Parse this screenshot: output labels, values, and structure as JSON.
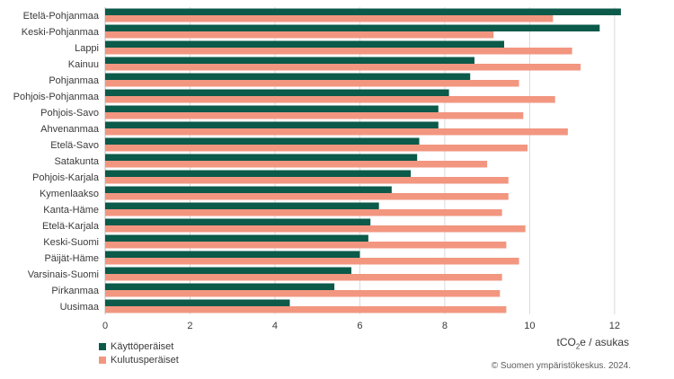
{
  "chart_data": {
    "type": "bar",
    "orientation": "horizontal",
    "categories": [
      "Etelä-Pohjanmaa",
      "Keski-Pohjanmaa",
      "Lappi",
      "Kainuu",
      "Pohjanmaa",
      "Pohjois-Pohjanmaa",
      "Pohjois-Savo",
      "Ahvenanmaa",
      "Etelä-Savo",
      "Satakunta",
      "Pohjois-Karjala",
      "Kymenlaakso",
      "Kanta-Häme",
      "Etelä-Karjala",
      "Keski-Suomi",
      "Päijät-Häme",
      "Varsinais-Suomi",
      "Pirkanmaa",
      "Uusimaa"
    ],
    "series": [
      {
        "name": "Käyttöperäiset",
        "color": "#0b5a4a",
        "values": [
          12.15,
          11.65,
          9.4,
          8.7,
          8.6,
          8.1,
          7.85,
          7.85,
          7.4,
          7.35,
          7.2,
          6.75,
          6.45,
          6.25,
          6.2,
          6.0,
          5.8,
          5.4,
          4.35
        ]
      },
      {
        "name": "Kulutusperäiset",
        "color": "#f29680",
        "values": [
          10.55,
          9.15,
          11.0,
          11.2,
          9.75,
          10.6,
          9.85,
          10.9,
          9.95,
          9.0,
          9.5,
          9.5,
          9.35,
          9.9,
          9.45,
          9.75,
          9.35,
          9.3,
          9.45
        ]
      }
    ],
    "xlim": [
      0,
      12.3
    ],
    "xticks": [
      0,
      2,
      4,
      6,
      8,
      10,
      12
    ],
    "xlabel_main": "tCO",
    "xlabel_sub": "2",
    "xlabel_rest": "e / asukas",
    "grid": true,
    "legend_position": "bottom-left"
  },
  "footer": {
    "copyright": "© Suomen ympäristökeskus. 2024."
  }
}
